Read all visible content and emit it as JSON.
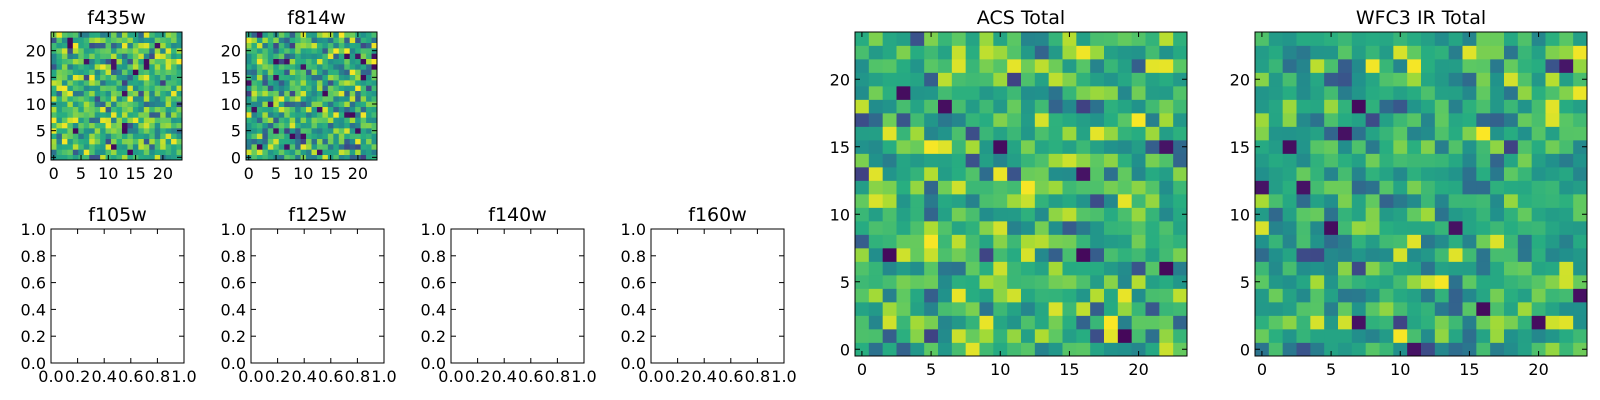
{
  "figure": {
    "background": "#ffffff"
  },
  "colormap": "viridis",
  "chart_data": [
    {
      "type": "heatmap",
      "title": "f435w",
      "shape": [
        24,
        24
      ],
      "xlim": [
        -0.5,
        23.5
      ],
      "ylim": [
        -0.5,
        23.5
      ],
      "xticks": [
        0,
        5,
        10,
        15,
        20
      ],
      "yticks": [
        0,
        5,
        10,
        15,
        20
      ],
      "value_range": [
        0,
        1
      ],
      "seed": 11,
      "distribution": {
        "base": 0.66,
        "spread": 0.22,
        "dark_fraction": 0.03
      }
    },
    {
      "type": "heatmap",
      "title": "f814w",
      "shape": [
        24,
        24
      ],
      "xlim": [
        -0.5,
        23.5
      ],
      "ylim": [
        -0.5,
        23.5
      ],
      "xticks": [
        0,
        5,
        10,
        15,
        20
      ],
      "yticks": [
        0,
        5,
        10,
        15,
        20
      ],
      "value_range": [
        0,
        1
      ],
      "seed": 23,
      "distribution": {
        "base": 0.64,
        "spread": 0.22,
        "dark_fraction": 0.04
      }
    },
    {
      "type": "heatmap",
      "title": "ACS Total",
      "shape": [
        24,
        24
      ],
      "xlim": [
        -0.5,
        23.5
      ],
      "ylim": [
        -0.5,
        23.5
      ],
      "xticks": [
        0,
        5,
        10,
        15,
        20
      ],
      "yticks": [
        0,
        5,
        10,
        15,
        20
      ],
      "value_range": [
        0,
        1
      ],
      "seed": 37,
      "distribution": {
        "base": 0.67,
        "spread": 0.2,
        "dark_fraction": 0.035
      }
    },
    {
      "type": "heatmap",
      "title": "WFC3 IR Total",
      "shape": [
        24,
        24
      ],
      "xlim": [
        -0.5,
        23.5
      ],
      "ylim": [
        -0.5,
        23.5
      ],
      "xticks": [
        0,
        5,
        10,
        15,
        20
      ],
      "yticks": [
        0,
        5,
        10,
        15,
        20
      ],
      "value_range": [
        0,
        1
      ],
      "seed": 53,
      "distribution": {
        "base": 0.6,
        "spread": 0.2,
        "dark_fraction": 0.025
      }
    },
    {
      "type": "empty",
      "title": "f105w",
      "xlim": [
        0,
        1
      ],
      "ylim": [
        0,
        1
      ],
      "xticks": [
        "0.0",
        "0.2",
        "0.4",
        "0.6",
        "0.8",
        "1.0"
      ],
      "yticks": [
        "0.0",
        "0.2",
        "0.4",
        "0.6",
        "0.8",
        "1.0"
      ]
    },
    {
      "type": "empty",
      "title": "f125w",
      "xlim": [
        0,
        1
      ],
      "ylim": [
        0,
        1
      ],
      "xticks": [
        "0.0",
        "0.2",
        "0.4",
        "0.6",
        "0.8",
        "1.0"
      ],
      "yticks": [
        "0.0",
        "0.2",
        "0.4",
        "0.6",
        "0.8",
        "1.0"
      ]
    },
    {
      "type": "empty",
      "title": "f140w",
      "xlim": [
        0,
        1
      ],
      "ylim": [
        0,
        1
      ],
      "xticks": [
        "0.0",
        "0.2",
        "0.4",
        "0.6",
        "0.8",
        "1.0"
      ],
      "yticks": [
        "0.0",
        "0.2",
        "0.4",
        "0.6",
        "0.8",
        "1.0"
      ]
    },
    {
      "type": "empty",
      "title": "f160w",
      "xlim": [
        0,
        1
      ],
      "ylim": [
        0,
        1
      ],
      "xticks": [
        "0.0",
        "0.2",
        "0.4",
        "0.6",
        "0.8",
        "1.0"
      ],
      "yticks": [
        "0.0",
        "0.2",
        "0.4",
        "0.6",
        "0.8",
        "1.0"
      ]
    }
  ]
}
